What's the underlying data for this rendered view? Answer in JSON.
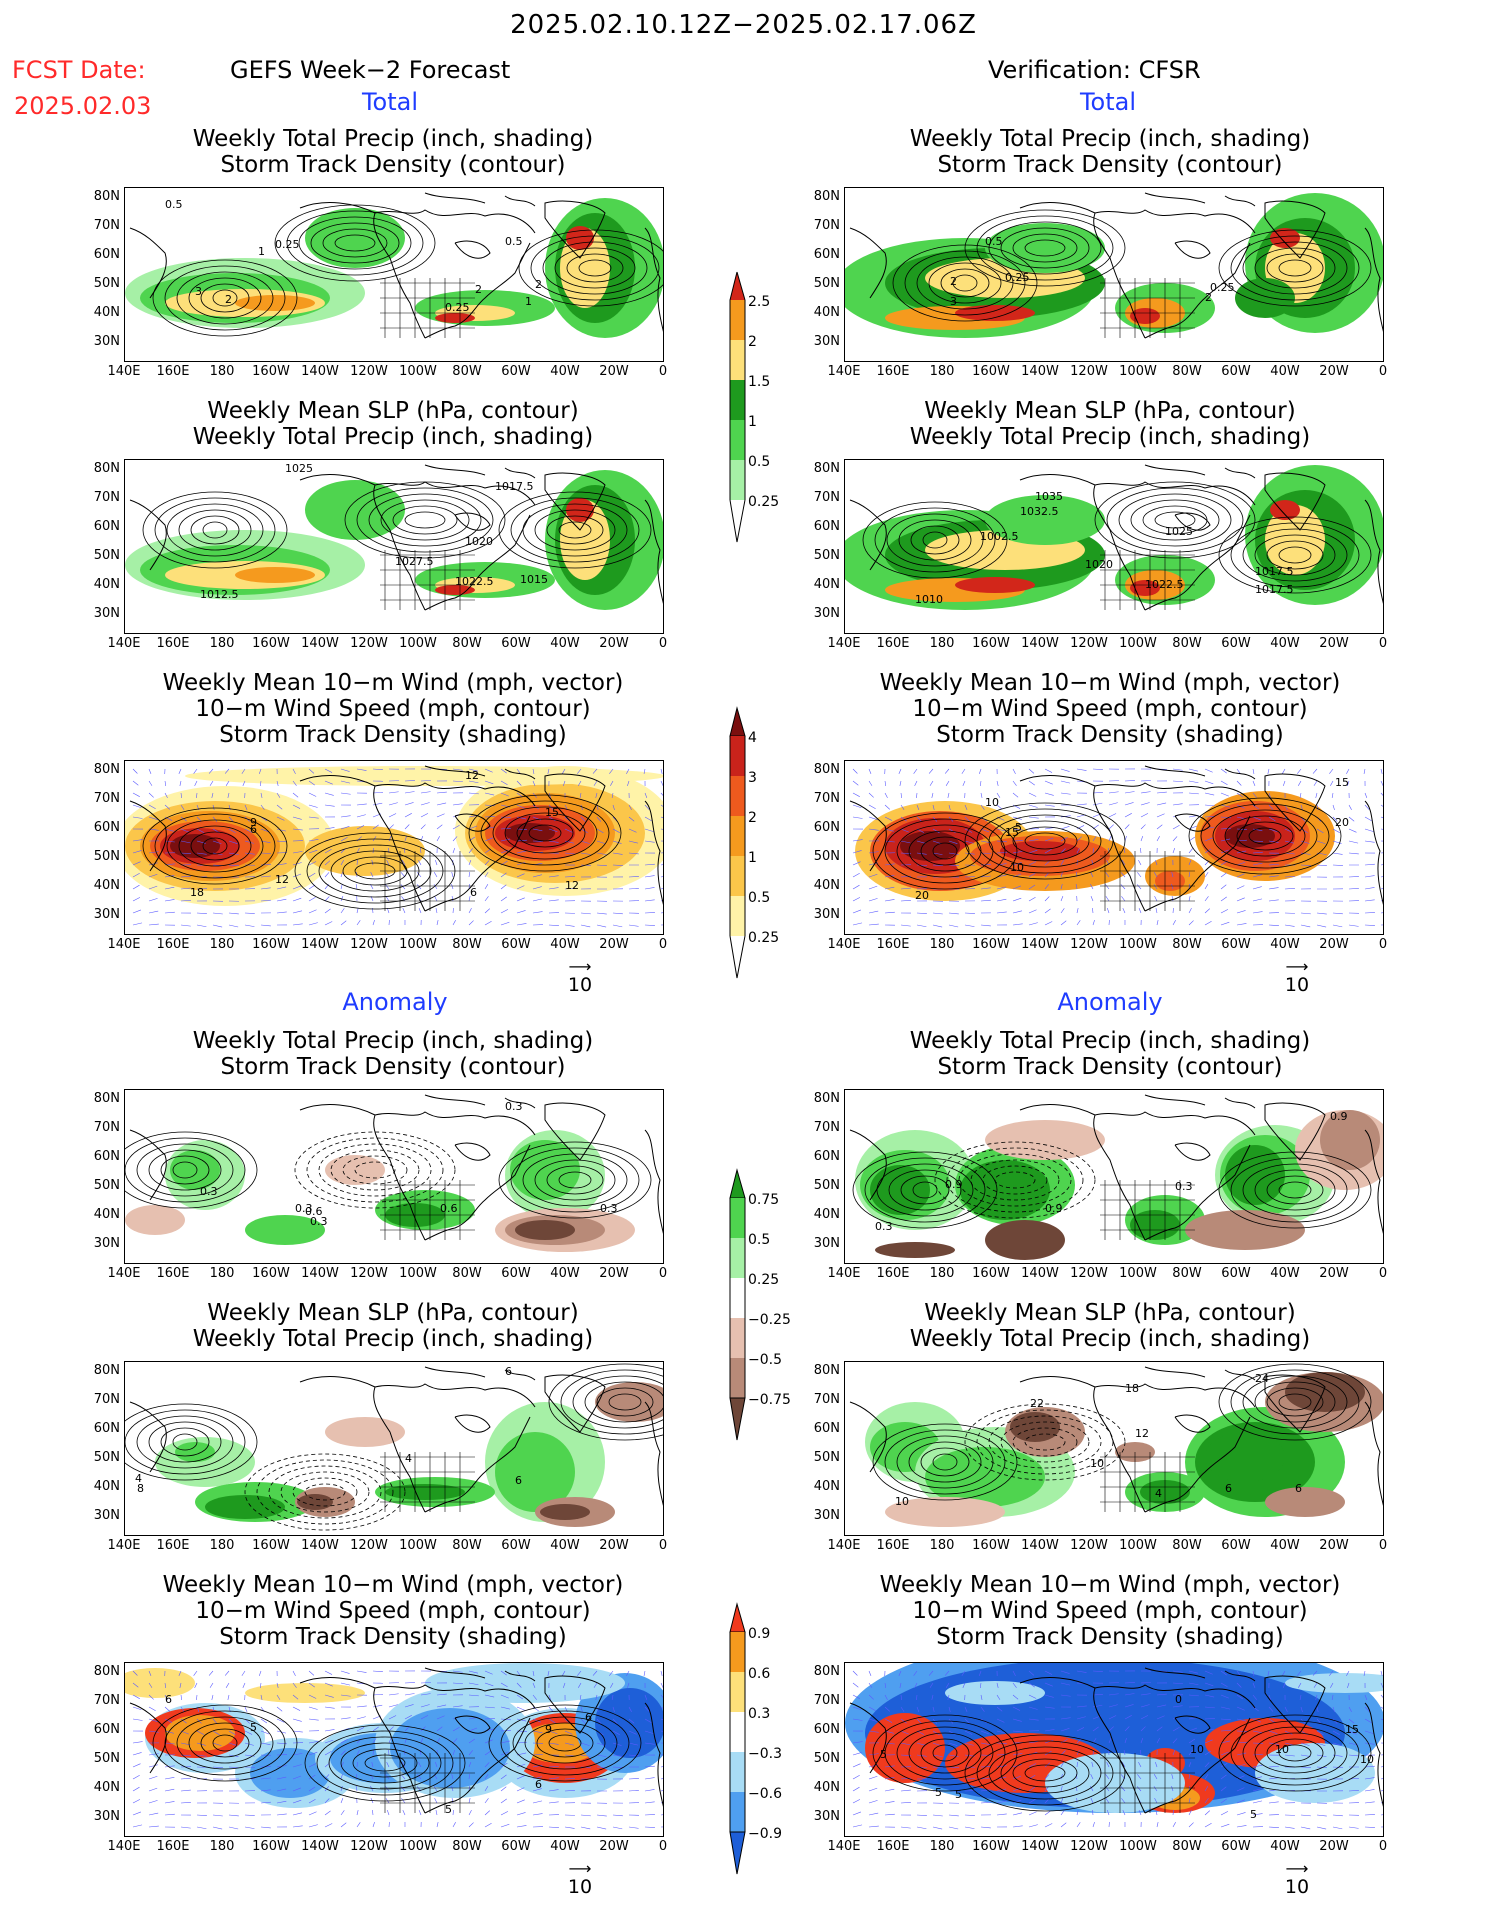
{
  "header": {
    "date_range": "2025.02.10.12Z−2025.02.17.06Z",
    "fcst_label": "FCST Date:",
    "fcst_date": "2025.02.03",
    "left_title": "GEFS Week−2 Forecast",
    "right_title": "Verification: CFSR"
  },
  "sections": {
    "total": "Total",
    "anomaly": "Anomaly"
  },
  "panels": {
    "p1": {
      "l1": "Weekly Total Precip (inch, shading)",
      "l2": "Storm Track Density (contour)"
    },
    "p2": {
      "l1": "Weekly Mean SLP (hPa, contour)",
      "l2": "Weekly Total Precip (inch, shading)"
    },
    "p3": {
      "l1": "Weekly Mean 10−m Wind (mph, vector)",
      "l2": "10−m Wind Speed (mph, contour)",
      "l3": "Storm Track Density (shading)"
    }
  },
  "axes": {
    "lat": [
      "80N",
      "70N",
      "60N",
      "50N",
      "40N",
      "30N"
    ],
    "lon": [
      "140E",
      "160E",
      "180",
      "160W",
      "140W",
      "120W",
      "100W",
      "80W",
      "60W",
      "40W",
      "20W",
      "0"
    ]
  },
  "vector_ref": "10",
  "colorbars": {
    "precip_total": [
      "2.5",
      "2",
      "1.5",
      "1",
      "0.5",
      "0.25"
    ],
    "std_total": [
      "4",
      "3",
      "2",
      "1",
      "0.5",
      "0.25"
    ],
    "precip_anom": [
      "0.75",
      "0.5",
      "0.25",
      "−0.25",
      "−0.5",
      "−0.75"
    ],
    "std_anom": [
      "0.9",
      "0.6",
      "0.3",
      "−0.3",
      "−0.6",
      "−0.9"
    ]
  },
  "map_labels": {
    "a1": [
      "0.5",
      "0.25",
      "1",
      "3",
      "2",
      "0.25",
      "0.5",
      "2",
      "1",
      "2"
    ],
    "b1": [
      "0.5",
      "2",
      "0.25",
      "3",
      "2",
      "0.25"
    ],
    "a2": [
      "1025",
      "1017.5",
      "1020",
      "1027.5",
      "1022.5",
      "1015",
      "1012.5"
    ],
    "b2": [
      "1035",
      "1032.5",
      "1002.5",
      "1025",
      "1020",
      "1017.5",
      "1022.5",
      "1010",
      "1017.5"
    ],
    "a3": [
      "12",
      "9",
      "6",
      "15",
      "12",
      "18",
      "12",
      "6"
    ],
    "b3": [
      "10",
      "15",
      "15",
      "10",
      "20",
      "20",
      "5"
    ],
    "a4": [
      "0.3",
      "0.3",
      "0.6",
      "0.3",
      "0.6",
      "0.3",
      "0.3"
    ],
    "b4": [
      "0.9",
      "0.9",
      "0.9",
      "0.3",
      "0.3"
    ],
    "a5": [
      "6",
      "4",
      "8",
      "6",
      "4"
    ],
    "b5": [
      "22",
      "18",
      "12",
      "24",
      "10",
      "6",
      "10",
      "4",
      "6"
    ],
    "a6": [
      "6",
      "5",
      "9",
      "6",
      "5",
      "6"
    ],
    "b6": [
      "0",
      "5",
      "5",
      "10",
      "5",
      "15",
      "10",
      "10",
      "5"
    ]
  }
}
